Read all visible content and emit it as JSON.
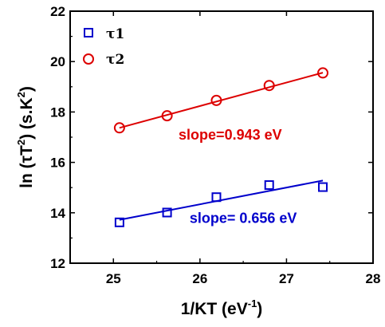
{
  "chart_data": {
    "type": "scatter",
    "xlabel": "1/KT (eV",
    "xlabel_sup": "-1",
    "xlabel_end": ")",
    "ylabel": "ln (τT",
    "ylabel_sup": "2",
    "ylabel_mid": ") (s.K",
    "ylabel_sup2": "2",
    "ylabel_end": ")",
    "xlim": [
      24.5,
      28
    ],
    "ylim": [
      12,
      22
    ],
    "xticks": [
      25,
      26,
      27,
      28
    ],
    "yticks": [
      12,
      14,
      16,
      18,
      20,
      22
    ],
    "grid": false,
    "legend_position": "top-left",
    "series": [
      {
        "name": "τ1",
        "color": "#0000cc",
        "marker": "square",
        "x": [
          25.07,
          25.62,
          26.19,
          26.8,
          27.42
        ],
        "y": [
          13.62,
          14.01,
          14.62,
          15.1,
          15.02
        ],
        "fit": {
          "x": [
            25.07,
            27.42
          ],
          "y": [
            13.72,
            15.28
          ]
        }
      },
      {
        "name": "τ2",
        "color": "#dd0000",
        "marker": "circle",
        "x": [
          25.07,
          25.62,
          26.19,
          26.8,
          27.42
        ],
        "y": [
          17.37,
          17.85,
          18.46,
          19.05,
          19.55
        ],
        "fit": {
          "x": [
            25.07,
            27.42
          ],
          "y": [
            17.37,
            19.56
          ]
        }
      }
    ],
    "annotations": [
      {
        "text": "slope=0.943 eV",
        "color": "#dd0000",
        "x": 26.35,
        "y": 16.9
      },
      {
        "text": "slope= 0.656 eV",
        "color": "#0000cc",
        "x": 26.5,
        "y": 13.6
      }
    ]
  }
}
